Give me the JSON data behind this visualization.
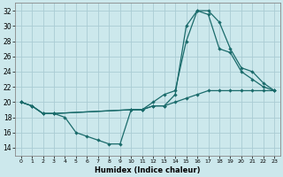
{
  "xlabel": "Humidex (Indice chaleur)",
  "background_color": "#cce8ec",
  "grid_color": "#aaccd4",
  "line_color": "#1a6b6b",
  "xlim": [
    -0.5,
    23.5
  ],
  "ylim": [
    13,
    33
  ],
  "xticks": [
    0,
    1,
    2,
    3,
    4,
    5,
    6,
    7,
    8,
    9,
    10,
    11,
    12,
    13,
    14,
    15,
    16,
    17,
    18,
    19,
    20,
    21,
    22,
    23
  ],
  "yticks": [
    14,
    16,
    18,
    20,
    22,
    24,
    26,
    28,
    30,
    32
  ],
  "line1_x": [
    0,
    1,
    2,
    3,
    4,
    5,
    6,
    7,
    8,
    9,
    10,
    11,
    12,
    13,
    14,
    15,
    16,
    17,
    18,
    19,
    20,
    21,
    22,
    23
  ],
  "line1_y": [
    20,
    19.5,
    18.5,
    18.5,
    18,
    16,
    15.5,
    15,
    14.5,
    14.5,
    19,
    19,
    19.5,
    19.5,
    20,
    20.5,
    21,
    21.5,
    21.5,
    21.5,
    21.5,
    21.5,
    21.5,
    21.5
  ],
  "line2_x": [
    0,
    1,
    2,
    3,
    10,
    11,
    12,
    13,
    14,
    15,
    16,
    17,
    18,
    19,
    20,
    21,
    22,
    23
  ],
  "line2_y": [
    20,
    19.5,
    18.5,
    18.5,
    19,
    19,
    19.5,
    19.5,
    21,
    30,
    32,
    31.5,
    27,
    26.5,
    24,
    23,
    22,
    21.5
  ],
  "line3_x": [
    0,
    1,
    2,
    3,
    10,
    11,
    12,
    13,
    14,
    15,
    16,
    17,
    18,
    19,
    20,
    21,
    22,
    23
  ],
  "line3_y": [
    20,
    19.5,
    18.5,
    18.5,
    19,
    19,
    20,
    21,
    21.5,
    28,
    32,
    32,
    30.5,
    27,
    24.5,
    24,
    22.5,
    21.5
  ]
}
